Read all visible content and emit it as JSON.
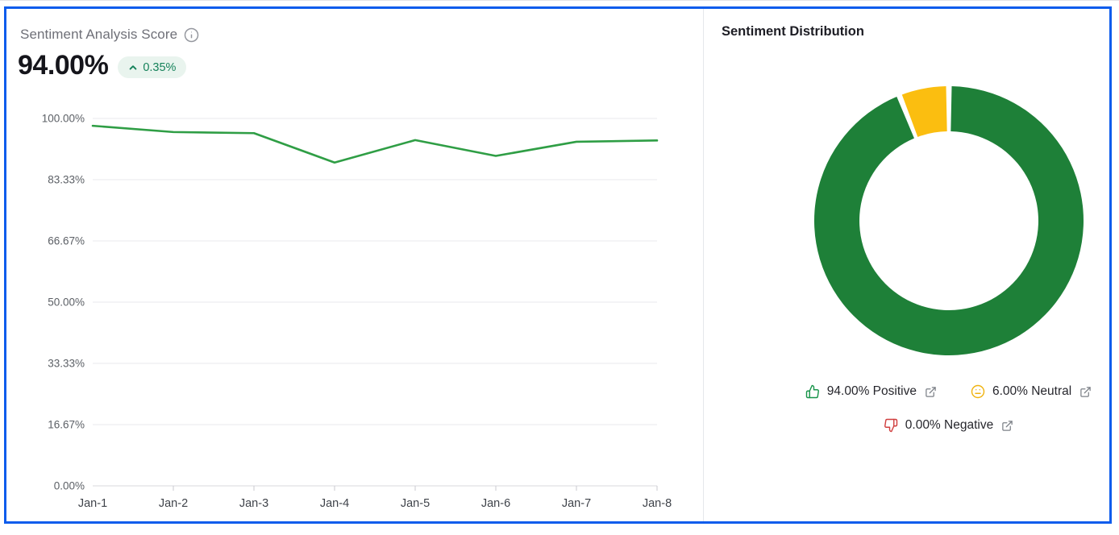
{
  "frame": {
    "border_color": "#0d5cec"
  },
  "score_panel": {
    "score": "94.00%",
    "delta": "0.35%",
    "delta_direction": "up",
    "badge_bg": "#e9f4ee",
    "badge_text_color": "#15825a"
  },
  "chart_data": [
    {
      "type": "line",
      "title": "Sentiment Analysis Score",
      "x_labels": [
        "Jan-1",
        "Jan-2",
        "Jan-3",
        "Jan-4",
        "Jan-5",
        "Jan-6",
        "Jan-7",
        "Jan-8"
      ],
      "values": [
        98.0,
        96.3,
        96.0,
        88.0,
        94.1,
        89.8,
        93.65,
        94.0
      ],
      "ylim": [
        0,
        100
      ],
      "ytick_labels": [
        "100.00%",
        "83.33%",
        "66.67%",
        "50.00%",
        "33.33%",
        "16.67%",
        "0.00%"
      ],
      "line_color": "#2f9e45",
      "grid": true,
      "legend": "none"
    },
    {
      "type": "pie",
      "donut": true,
      "title": "Sentiment Distribution",
      "start_angle_deg": -90,
      "direction": "clockwise",
      "slices": [
        {
          "label": "Positive",
          "value": 94,
          "color": "#1e8038"
        },
        {
          "label": "Neutral",
          "value": 6,
          "color": "#fbbe10"
        },
        {
          "label": "Negative",
          "value": 0,
          "color": "#d03f3f"
        }
      ],
      "legend_items": [
        {
          "icon": "thumbs-up-icon",
          "label": "94.00% Positive",
          "color": "#18944a"
        },
        {
          "icon": "meh-face-icon",
          "label": "6.00% Neutral",
          "color": "#f0b310"
        },
        {
          "icon": "thumbs-down-icon",
          "label": "0.00% Negative",
          "color": "#d03f3f"
        }
      ]
    }
  ]
}
